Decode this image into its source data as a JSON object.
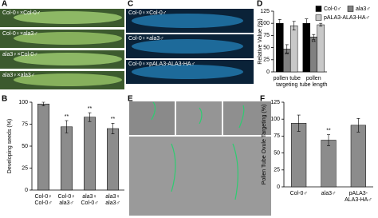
{
  "panel_letters": [
    "A",
    "B",
    "C",
    "D",
    "E",
    "F"
  ],
  "panel_a_labels": [
    "Col-0♀×Col-0♂",
    "Col-0♀×ala3♂",
    "ala3♀×Col-0♂",
    "ala3♀×ala3♂"
  ],
  "panel_c_labels": [
    "Col-0♀×Col-0♂",
    "Col-0♀×ala3♂",
    "Col-0♀×pALA3-ALA3-HA♂"
  ],
  "chart_data": [
    {
      "type": "bar",
      "y_label": "Developing seeds (%)",
      "categories": [
        [
          "Col-0♀",
          "Col-0♂"
        ],
        [
          "Col-0♀",
          "ala3♂"
        ],
        [
          "ala3♀",
          "Col-0♂"
        ],
        [
          "ala3♀",
          "ala3♂"
        ]
      ],
      "values": [
        98,
        72,
        83,
        70
      ],
      "errors": [
        2,
        7,
        5,
        6
      ],
      "significance": [
        null,
        "**",
        "**",
        "**"
      ],
      "color": "#8c8c8c",
      "ylim": [
        0,
        100
      ],
      "yticks": [
        0,
        25,
        50,
        75,
        100
      ]
    },
    {
      "type": "bar",
      "y_label": "Relative Value (%)",
      "categories": [
        [
          "pollen tube",
          "targeting"
        ],
        [
          "pollen",
          "tube length"
        ]
      ],
      "series": [
        {
          "name": "Col-0♂",
          "color": "#000000",
          "values": [
            100,
            100
          ],
          "errors": [
            8,
            9
          ],
          "significance": [
            null,
            null
          ]
        },
        {
          "name": "ala3♂",
          "color": "#808080",
          "values": [
            47,
            72
          ],
          "errors": [
            9,
            5
          ],
          "significance": [
            "**",
            "**"
          ]
        },
        {
          "name": "pALA3-ALA3-HA♂",
          "color": "#c8c8c8",
          "values": [
            95,
            97
          ],
          "errors": [
            9,
            3
          ],
          "significance": [
            null,
            null
          ]
        }
      ],
      "ylim": [
        0,
        125
      ],
      "yticks": [
        0,
        25,
        50,
        75,
        100,
        125
      ]
    },
    {
      "type": "bar",
      "y_label": "Pollen Tube Ovule Targeting (%)",
      "categories": [
        [
          "Col-0♂"
        ],
        [
          "ala3♂"
        ],
        [
          "pALA3-",
          "ALA3-HA♂"
        ]
      ],
      "values": [
        94,
        69,
        91
      ],
      "errors": [
        12,
        8,
        10
      ],
      "significance": [
        null,
        "**",
        null
      ],
      "color": "#8c8c8c",
      "ylim": [
        0,
        125
      ],
      "yticks": [
        0,
        25,
        50,
        75,
        100,
        125
      ]
    }
  ]
}
